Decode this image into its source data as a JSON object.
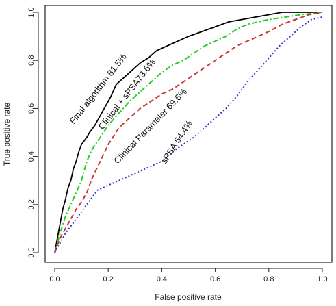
{
  "chart_data": {
    "type": "line",
    "xlabel": "False positive rate",
    "ylabel": "True positive rate",
    "xlim": [
      0,
      1
    ],
    "ylim": [
      0,
      1
    ],
    "xticks": [
      "0.0",
      "0.2",
      "0.4",
      "0.6",
      "0.8",
      "1.0"
    ],
    "yticks": [
      "0.0",
      "0.2",
      "0.4",
      "0.6",
      "0.8",
      "1.0"
    ],
    "grid": false,
    "legend": "none",
    "series": [
      {
        "label": "Final algorithm 81.5%",
        "color": "#000000",
        "dash": "solid",
        "points": [
          [
            0,
            0
          ],
          [
            0.01,
            0.06
          ],
          [
            0.02,
            0.12
          ],
          [
            0.03,
            0.18
          ],
          [
            0.04,
            0.22
          ],
          [
            0.05,
            0.27
          ],
          [
            0.06,
            0.3
          ],
          [
            0.07,
            0.35
          ],
          [
            0.08,
            0.38
          ],
          [
            0.09,
            0.42
          ],
          [
            0.1,
            0.45
          ],
          [
            0.12,
            0.48
          ],
          [
            0.13,
            0.5
          ],
          [
            0.15,
            0.53
          ],
          [
            0.17,
            0.57
          ],
          [
            0.19,
            0.61
          ],
          [
            0.21,
            0.65
          ],
          [
            0.23,
            0.7
          ],
          [
            0.26,
            0.73
          ],
          [
            0.29,
            0.76
          ],
          [
            0.32,
            0.79
          ],
          [
            0.35,
            0.81
          ],
          [
            0.38,
            0.84
          ],
          [
            0.42,
            0.86
          ],
          [
            0.46,
            0.88
          ],
          [
            0.5,
            0.9
          ],
          [
            0.55,
            0.92
          ],
          [
            0.6,
            0.94
          ],
          [
            0.65,
            0.96
          ],
          [
            0.7,
            0.97
          ],
          [
            0.75,
            0.98
          ],
          [
            0.8,
            0.99
          ],
          [
            0.85,
            1.0
          ],
          [
            1.0,
            1.0
          ]
        ]
      },
      {
        "label": "Clinical + sPSA73.6%",
        "color": "#22cc22",
        "dash": "dashdot",
        "points": [
          [
            0,
            0
          ],
          [
            0.02,
            0.08
          ],
          [
            0.04,
            0.15
          ],
          [
            0.06,
            0.2
          ],
          [
            0.08,
            0.25
          ],
          [
            0.1,
            0.3
          ],
          [
            0.12,
            0.38
          ],
          [
            0.14,
            0.43
          ],
          [
            0.17,
            0.48
          ],
          [
            0.2,
            0.53
          ],
          [
            0.24,
            0.58
          ],
          [
            0.28,
            0.63
          ],
          [
            0.32,
            0.67
          ],
          [
            0.36,
            0.71
          ],
          [
            0.4,
            0.75
          ],
          [
            0.44,
            0.78
          ],
          [
            0.48,
            0.8
          ],
          [
            0.52,
            0.83
          ],
          [
            0.56,
            0.86
          ],
          [
            0.6,
            0.88
          ],
          [
            0.64,
            0.9
          ],
          [
            0.68,
            0.93
          ],
          [
            0.72,
            0.95
          ],
          [
            0.76,
            0.96
          ],
          [
            0.8,
            0.97
          ],
          [
            0.86,
            0.98
          ],
          [
            0.92,
            0.99
          ],
          [
            1.0,
            1.0
          ]
        ]
      },
      {
        "label": "Clinical Parameter 69.6%",
        "color": "#cc3333",
        "dash": "dash",
        "points": [
          [
            0,
            0
          ],
          [
            0.02,
            0.06
          ],
          [
            0.04,
            0.1
          ],
          [
            0.06,
            0.14
          ],
          [
            0.08,
            0.18
          ],
          [
            0.1,
            0.21
          ],
          [
            0.12,
            0.25
          ],
          [
            0.14,
            0.31
          ],
          [
            0.17,
            0.38
          ],
          [
            0.2,
            0.45
          ],
          [
            0.24,
            0.52
          ],
          [
            0.28,
            0.56
          ],
          [
            0.32,
            0.6
          ],
          [
            0.36,
            0.63
          ],
          [
            0.4,
            0.66
          ],
          [
            0.44,
            0.68
          ],
          [
            0.48,
            0.71
          ],
          [
            0.52,
            0.74
          ],
          [
            0.56,
            0.77
          ],
          [
            0.6,
            0.8
          ],
          [
            0.64,
            0.83
          ],
          [
            0.68,
            0.86
          ],
          [
            0.72,
            0.88
          ],
          [
            0.76,
            0.9
          ],
          [
            0.8,
            0.92
          ],
          [
            0.85,
            0.95
          ],
          [
            0.9,
            0.97
          ],
          [
            0.95,
            0.99
          ],
          [
            1.0,
            1.0
          ]
        ]
      },
      {
        "label": "sPSA 54.4%",
        "color": "#3333cc",
        "dash": "dot",
        "points": [
          [
            0,
            0
          ],
          [
            0.02,
            0.04
          ],
          [
            0.04,
            0.08
          ],
          [
            0.06,
            0.11
          ],
          [
            0.08,
            0.14
          ],
          [
            0.1,
            0.17
          ],
          [
            0.12,
            0.2
          ],
          [
            0.14,
            0.23
          ],
          [
            0.16,
            0.26
          ],
          [
            0.2,
            0.28
          ],
          [
            0.24,
            0.3
          ],
          [
            0.28,
            0.32
          ],
          [
            0.32,
            0.34
          ],
          [
            0.36,
            0.36
          ],
          [
            0.4,
            0.38
          ],
          [
            0.44,
            0.42
          ],
          [
            0.48,
            0.45
          ],
          [
            0.52,
            0.48
          ],
          [
            0.56,
            0.52
          ],
          [
            0.6,
            0.56
          ],
          [
            0.64,
            0.6
          ],
          [
            0.68,
            0.65
          ],
          [
            0.72,
            0.71
          ],
          [
            0.76,
            0.76
          ],
          [
            0.8,
            0.81
          ],
          [
            0.84,
            0.86
          ],
          [
            0.88,
            0.9
          ],
          [
            0.92,
            0.94
          ],
          [
            0.96,
            0.97
          ],
          [
            1.0,
            0.98
          ]
        ]
      }
    ]
  }
}
